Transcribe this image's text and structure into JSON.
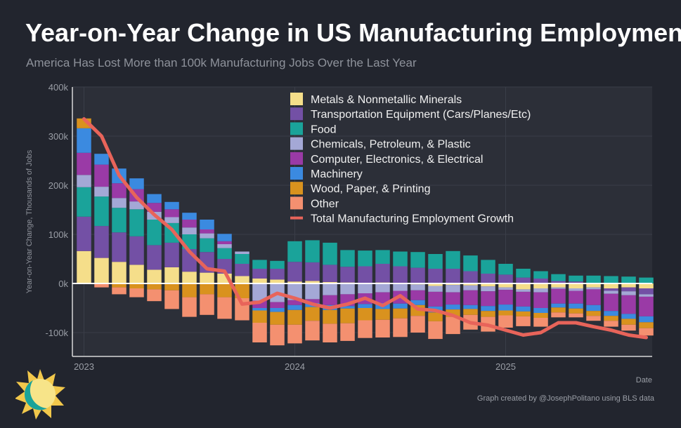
{
  "title": "Year-on-Year Change in US Manufacturing Employment",
  "subtitle": "America Has Lost More than 100k Manufacturing Jobs Over the Last Year",
  "credit": "Graph created by @JosephPolitano using BLS data",
  "colors": {
    "background": "#22252e",
    "panel": "#2c2f38",
    "grid": "#3a3e48",
    "zero_line": "#ffffff",
    "total_line": "#e8645a"
  },
  "chart_data": {
    "type": "bar",
    "stacked": true,
    "ylabel": "Year-on-Year Change, Thousands of Jobs",
    "xlabel": "Date",
    "ylim": [
      -145,
      400
    ],
    "y_ticks": [
      -100,
      0,
      100,
      200,
      300,
      400
    ],
    "y_tick_labels": [
      "-100k",
      "0k",
      "100k",
      "200k",
      "300k",
      "400k"
    ],
    "x_ticks": [
      {
        "index": 0,
        "label": "2023"
      },
      {
        "index": 12,
        "label": "2024"
      },
      {
        "index": 24,
        "label": "2025"
      }
    ],
    "grid": true,
    "legend_position": "top-right",
    "categories": [
      "2023-01",
      "2023-02",
      "2023-03",
      "2023-04",
      "2023-05",
      "2023-06",
      "2023-07",
      "2023-08",
      "2023-09",
      "2023-10",
      "2023-11",
      "2023-12",
      "2024-01",
      "2024-02",
      "2024-03",
      "2024-04",
      "2024-05",
      "2024-06",
      "2024-07",
      "2024-08",
      "2024-09",
      "2024-10",
      "2024-11",
      "2024-12",
      "2025-01",
      "2025-02",
      "2025-03",
      "2025-04",
      "2025-05",
      "2025-06",
      "2025-07",
      "2025-08",
      "2025-09"
    ],
    "series": [
      {
        "name": "Metals & Nonmetallic Minerals",
        "color": "#f5de8a",
        "values": [
          66,
          52,
          44,
          38,
          28,
          33,
          24,
          22,
          20,
          15,
          10,
          8,
          4,
          5,
          3,
          2,
          0,
          2,
          0,
          -2,
          -5,
          -3,
          -4,
          -6,
          -8,
          -12,
          -10,
          -8,
          -10,
          -8,
          -10,
          -8,
          -10
        ]
      },
      {
        "name": "Transportation Equipment (Cars/Planes/Etc)",
        "color": "#7350a5",
        "values": [
          70,
          65,
          60,
          58,
          50,
          50,
          46,
          42,
          30,
          25,
          20,
          22,
          40,
          38,
          35,
          32,
          35,
          38,
          35,
          32,
          30,
          30,
          25,
          20,
          18,
          12,
          10,
          5,
          4,
          0,
          -5,
          -8,
          -12
        ]
      },
      {
        "name": "Food",
        "color": "#1aa39a",
        "values": [
          60,
          60,
          50,
          55,
          52,
          40,
          30,
          28,
          22,
          20,
          18,
          16,
          42,
          45,
          45,
          34,
          32,
          28,
          30,
          32,
          30,
          36,
          32,
          28,
          22,
          18,
          15,
          14,
          12,
          16,
          15,
          14,
          12
        ]
      },
      {
        "name": "Chemicals, Petroleum, & Plastic",
        "color": "#a4a8d6",
        "values": [
          25,
          20,
          20,
          16,
          16,
          12,
          14,
          10,
          8,
          5,
          -35,
          -38,
          -34,
          -32,
          -24,
          -22,
          -20,
          -18,
          -15,
          -12,
          -12,
          -15,
          -10,
          -10,
          -5,
          -5,
          -8,
          -3,
          -5,
          -4,
          -6,
          -8,
          -5
        ]
      },
      {
        "name": "Computer, Electronics, & Electrical",
        "color": "#9a3aa6",
        "values": [
          45,
          45,
          30,
          25,
          18,
          16,
          16,
          8,
          6,
          0,
          -15,
          -12,
          -10,
          -8,
          -20,
          -24,
          -22,
          -22,
          -26,
          -20,
          -30,
          -25,
          -30,
          -30,
          -30,
          -30,
          -32,
          -30,
          -26,
          -32,
          -35,
          -38,
          -40
        ]
      },
      {
        "name": "Machinery",
        "color": "#3b8ae0",
        "values": [
          50,
          22,
          30,
          22,
          18,
          15,
          14,
          20,
          15,
          0,
          -5,
          -8,
          -10,
          -8,
          -10,
          -5,
          -8,
          -12,
          -10,
          -10,
          -12,
          -10,
          -8,
          -10,
          -12,
          -10,
          -10,
          -8,
          -10,
          -12,
          -10,
          -10,
          -12
        ]
      },
      {
        "name": "Wood, Paper, & Printing",
        "color": "#d9921e",
        "values": [
          20,
          0,
          -8,
          -10,
          -12,
          -14,
          -28,
          -22,
          -28,
          -30,
          -25,
          -26,
          -30,
          -28,
          -28,
          -30,
          -25,
          -22,
          -20,
          -22,
          -18,
          -15,
          -12,
          -12,
          -10,
          -10,
          -10,
          -10,
          -10,
          -10,
          -10,
          -12,
          -12
        ]
      },
      {
        "name": "Other",
        "color": "#f49070",
        "values": [
          0,
          -8,
          -14,
          -18,
          -24,
          -38,
          -40,
          -42,
          -44,
          -45,
          -40,
          -42,
          -38,
          -40,
          -38,
          -36,
          -36,
          -36,
          -38,
          -34,
          -36,
          -35,
          -30,
          -30,
          -25,
          -20,
          -18,
          -10,
          -8,
          -10,
          -12,
          -12,
          -15
        ]
      }
    ],
    "total": {
      "name": "Total Manufacturing Employment Growth",
      "color": "#e8645a",
      "values": [
        335,
        300,
        220,
        175,
        140,
        110,
        65,
        30,
        25,
        -42,
        -38,
        -20,
        -30,
        -42,
        -50,
        -42,
        -30,
        -45,
        -25,
        -52,
        -55,
        -65,
        -80,
        -85,
        -95,
        -105,
        -100,
        -80,
        -80,
        -88,
        -95,
        -105,
        -110
      ]
    }
  }
}
